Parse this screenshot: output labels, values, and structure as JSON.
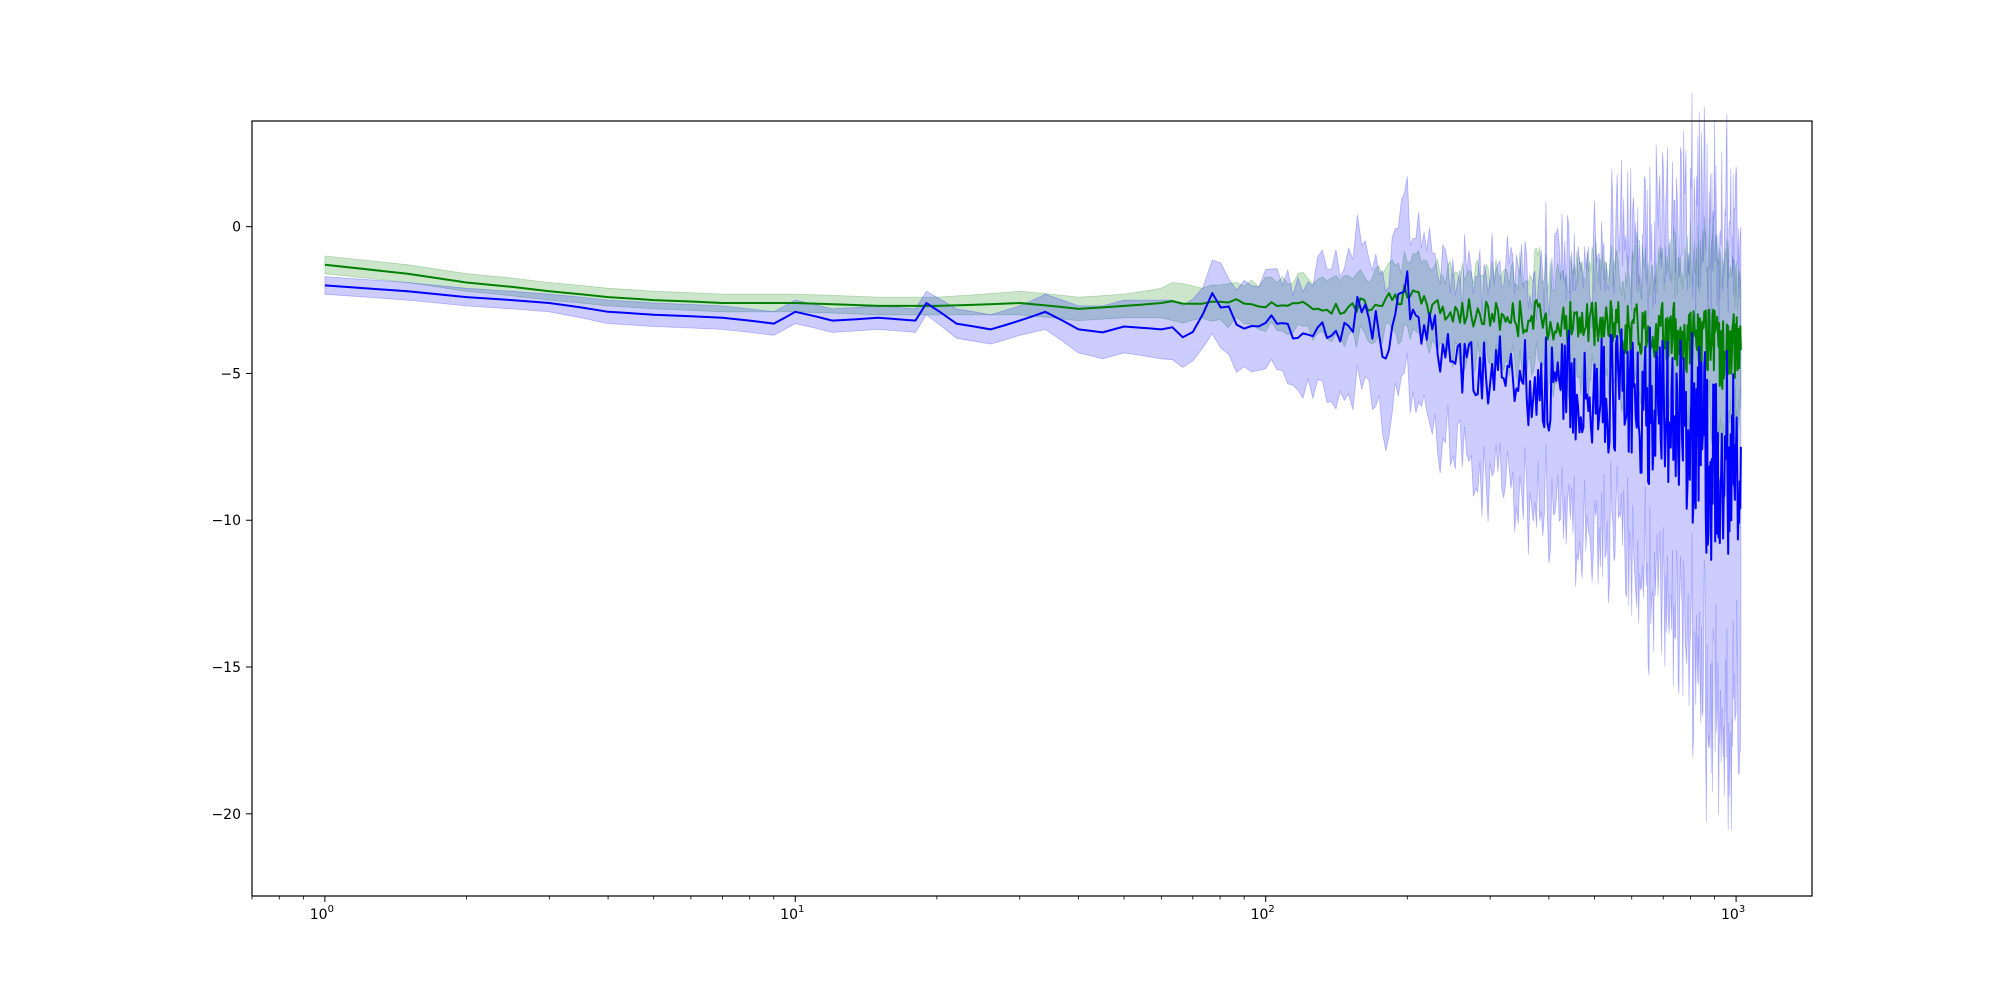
{
  "chart_data": {
    "type": "line",
    "title": "",
    "xlabel": "",
    "ylabel": "",
    "xscale": "log",
    "xlim": [
      0.7,
      1450
    ],
    "ylim": [
      -22.8,
      3.6
    ],
    "grid": false,
    "legend": "none",
    "x_ticks": [
      {
        "value": 1,
        "base": "10",
        "exp": "0"
      },
      {
        "value": 10,
        "base": "10",
        "exp": "1"
      },
      {
        "value": 100,
        "base": "10",
        "exp": "2"
      },
      {
        "value": 1000,
        "base": "10",
        "exp": "3"
      }
    ],
    "y_ticks": [
      {
        "value": 0,
        "label": "0"
      },
      {
        "value": -5,
        "label": "−5"
      },
      {
        "value": -10,
        "label": "−10"
      },
      {
        "value": -15,
        "label": "−15"
      },
      {
        "value": -20,
        "label": "−20"
      }
    ],
    "series": [
      {
        "color": "#008000",
        "band_color": "#008000",
        "band_opacity": 0.2,
        "x": [
          1,
          2,
          3,
          4,
          5,
          7,
          10,
          15,
          20,
          30,
          40,
          50,
          60,
          70,
          80,
          90,
          100,
          120,
          150,
          180,
          200,
          220,
          250,
          300,
          350,
          400,
          450,
          500,
          550,
          600,
          650,
          700,
          750,
          800,
          850,
          900,
          950,
          1000,
          1024
        ],
        "y": [
          -1.3,
          -1.9,
          -2.2,
          -2.4,
          -2.5,
          -2.6,
          -2.6,
          -2.7,
          -2.7,
          -2.6,
          -2.8,
          -2.7,
          -2.6,
          -2.6,
          -2.5,
          -2.6,
          -2.6,
          -2.7,
          -2.8,
          -2.4,
          -2.3,
          -2.7,
          -2.9,
          -3.0,
          -3.1,
          -3.2,
          -3.3,
          -3.4,
          -3.3,
          -3.5,
          -3.4,
          -3.6,
          -3.7,
          -3.8,
          -4.0,
          -4.1,
          -4.3,
          -4.0,
          -4.2
        ],
        "lower": [
          -1.6,
          -2.2,
          -2.5,
          -2.7,
          -2.8,
          -2.9,
          -2.9,
          -3.0,
          -3.0,
          -3.0,
          -3.2,
          -3.1,
          -3.1,
          -3.2,
          -3.2,
          -3.3,
          -3.4,
          -3.6,
          -3.8,
          -3.5,
          -3.5,
          -4.0,
          -4.3,
          -4.5,
          -4.7,
          -4.9,
          -5.1,
          -5.3,
          -5.2,
          -5.6,
          -5.6,
          -5.9,
          -6.2,
          -6.5,
          -6.8,
          -7.0,
          -7.2,
          -6.5,
          -6.2
        ],
        "upper": [
          -1.0,
          -1.6,
          -1.9,
          -2.1,
          -2.2,
          -2.3,
          -2.3,
          -2.4,
          -2.4,
          -2.2,
          -2.4,
          -2.3,
          -2.1,
          -2.0,
          -1.8,
          -1.9,
          -1.8,
          -1.8,
          -1.8,
          -1.3,
          -1.1,
          -1.4,
          -1.5,
          -1.5,
          -1.5,
          -1.5,
          -1.5,
          -1.5,
          -1.4,
          -1.4,
          -1.2,
          -1.3,
          -1.2,
          -1.1,
          -1.2,
          -1.2,
          -1.4,
          -1.5,
          -2.2
        ]
      },
      {
        "color": "#0000ff",
        "band_color": "#0000ff",
        "band_opacity": 0.2,
        "x": [
          1,
          2,
          3,
          4,
          5,
          7,
          9,
          10,
          12,
          15,
          18,
          19,
          22,
          26,
          30,
          34,
          40,
          45,
          50,
          60,
          70,
          77,
          90,
          100,
          120,
          150,
          160,
          180,
          200,
          220,
          250,
          300,
          350,
          400,
          450,
          500,
          550,
          600,
          650,
          700,
          750,
          800,
          850,
          900,
          950,
          980,
          1000,
          1024
        ],
        "y": [
          -2.0,
          -2.4,
          -2.6,
          -2.9,
          -3.0,
          -3.1,
          -3.3,
          -2.9,
          -3.2,
          -3.1,
          -3.2,
          -2.6,
          -3.3,
          -3.5,
          -3.2,
          -2.9,
          -3.5,
          -3.6,
          -3.4,
          -3.5,
          -3.7,
          -2.2,
          -3.6,
          -3.1,
          -3.7,
          -3.4,
          -2.7,
          -4.1,
          -2.2,
          -3.6,
          -4.6,
          -4.9,
          -5.2,
          -5.3,
          -5.5,
          -5.8,
          -5.6,
          -5.9,
          -6.1,
          -6.0,
          -6.3,
          -6.8,
          -7.4,
          -8.0,
          -7.5,
          -9.4,
          -7.5,
          -7.5
        ],
        "lower": [
          -2.3,
          -2.7,
          -2.9,
          -3.3,
          -3.4,
          -3.5,
          -3.7,
          -3.3,
          -3.6,
          -3.5,
          -3.6,
          -3.0,
          -3.8,
          -4.0,
          -3.7,
          -3.5,
          -4.3,
          -4.5,
          -4.3,
          -4.5,
          -4.8,
          -3.4,
          -5.0,
          -4.6,
          -5.5,
          -5.9,
          -5.2,
          -6.8,
          -5.0,
          -6.5,
          -7.6,
          -8.5,
          -9.0,
          -9.3,
          -9.8,
          -10.5,
          -10.5,
          -11.2,
          -12.0,
          -12.3,
          -13.0,
          -14.0,
          -15.2,
          -16.3,
          -16.0,
          -18.0,
          -15.5,
          -15.0
        ],
        "upper": [
          -1.7,
          -2.1,
          -2.3,
          -2.5,
          -2.6,
          -2.7,
          -2.9,
          -2.5,
          -2.8,
          -2.7,
          -2.8,
          -2.2,
          -2.8,
          -3.0,
          -2.7,
          -2.3,
          -2.7,
          -2.7,
          -2.5,
          -2.5,
          -2.6,
          -1.0,
          -2.2,
          -1.6,
          -1.9,
          -0.9,
          -0.2,
          -1.4,
          0.6,
          -0.7,
          -1.6,
          -1.3,
          -1.4,
          -1.3,
          -1.2,
          -1.1,
          -0.7,
          -0.6,
          -0.2,
          0.3,
          0.4,
          0.4,
          0.4,
          0.3,
          1.0,
          -0.8,
          0.5,
          0.0
        ]
      }
    ]
  }
}
